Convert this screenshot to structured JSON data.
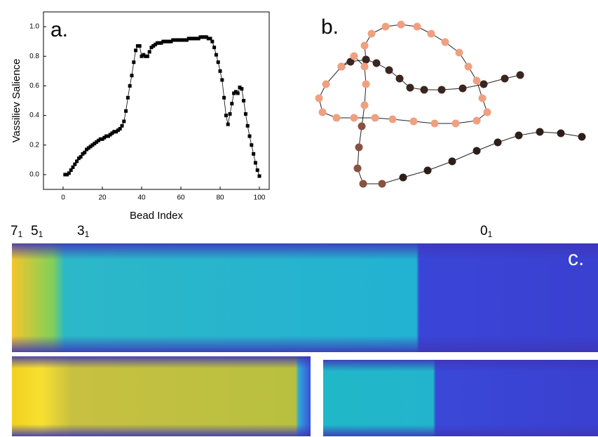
{
  "chart_data": {
    "type": "line",
    "xlabel": "Bead Index",
    "ylabel": "Vassiliev Salience",
    "x": [
      1,
      2,
      3,
      4,
      5,
      6,
      7,
      8,
      9,
      10,
      11,
      12,
      13,
      14,
      15,
      16,
      17,
      18,
      19,
      20,
      21,
      22,
      23,
      24,
      25,
      26,
      27,
      28,
      29,
      30,
      31,
      32,
      33,
      34,
      35,
      36,
      37,
      38,
      39,
      40,
      41,
      42,
      43,
      44,
      45,
      46,
      47,
      48,
      49,
      50,
      51,
      52,
      53,
      54,
      55,
      56,
      57,
      58,
      59,
      60,
      61,
      62,
      63,
      64,
      65,
      66,
      67,
      68,
      69,
      70,
      71,
      72,
      73,
      74,
      75,
      76,
      77,
      78,
      79,
      80,
      81,
      82,
      83,
      84,
      85,
      86,
      87,
      88,
      89,
      90,
      91,
      92,
      93,
      94,
      95,
      96,
      97,
      98,
      99,
      100
    ],
    "values": [
      0.0,
      0.0,
      0.01,
      0.03,
      0.05,
      0.07,
      0.09,
      0.11,
      0.12,
      0.14,
      0.15,
      0.17,
      0.18,
      0.19,
      0.2,
      0.21,
      0.22,
      0.23,
      0.24,
      0.24,
      0.25,
      0.26,
      0.26,
      0.27,
      0.28,
      0.29,
      0.29,
      0.3,
      0.31,
      0.33,
      0.36,
      0.43,
      0.52,
      0.6,
      0.67,
      0.76,
      0.84,
      0.87,
      0.87,
      0.8,
      0.81,
      0.8,
      0.8,
      0.83,
      0.86,
      0.87,
      0.88,
      0.89,
      0.89,
      0.89,
      0.9,
      0.9,
      0.9,
      0.9,
      0.9,
      0.91,
      0.91,
      0.91,
      0.91,
      0.91,
      0.91,
      0.91,
      0.91,
      0.92,
      0.92,
      0.92,
      0.92,
      0.92,
      0.92,
      0.93,
      0.93,
      0.93,
      0.93,
      0.92,
      0.92,
      0.9,
      0.86,
      0.81,
      0.76,
      0.7,
      0.64,
      0.52,
      0.4,
      0.34,
      0.41,
      0.48,
      0.55,
      0.56,
      0.55,
      0.59,
      0.58,
      0.5,
      0.41,
      0.33,
      0.26,
      0.2,
      0.14,
      0.08,
      0.03,
      -0.01
    ],
    "color": "#000000",
    "xlim": [
      -10,
      105
    ],
    "ylim": [
      -0.1,
      1.1
    ],
    "xticks": [
      0,
      20,
      40,
      60,
      80,
      100
    ],
    "yticks": [
      {
        "value": 0,
        "label": "0.0"
      },
      0.2,
      0.4,
      0.6,
      0.8,
      {
        "value": 1,
        "label": "1.0"
      }
    ]
  },
  "panel_labels": [
    "a.",
    "b.",
    "c."
  ],
  "knot_labels": [
    {
      "main": "7",
      "sub": "1"
    },
    {
      "main": "5",
      "sub": "1"
    },
    {
      "main": "3",
      "sub": "1"
    },
    {
      "main": "0",
      "sub": "1"
    }
  ]
}
